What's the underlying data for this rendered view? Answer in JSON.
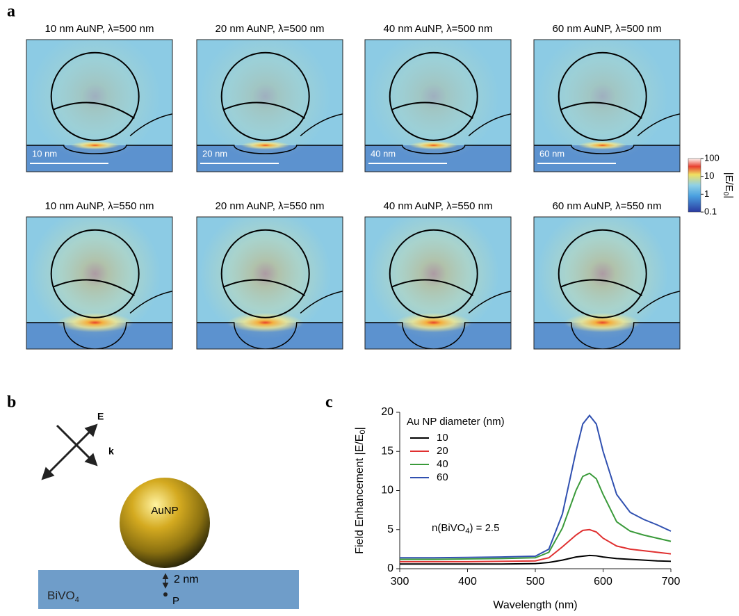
{
  "panel_a": {
    "label": "a",
    "maps": [
      {
        "title": "10 nm AuNP, λ=500 nm",
        "scale_bar": "10 nm"
      },
      {
        "title": "20 nm AuNP, λ=500 nm",
        "scale_bar": "20 nm"
      },
      {
        "title": "40 nm AuNP, λ=500 nm",
        "scale_bar": "40 nm"
      },
      {
        "title": "60 nm AuNP, λ=500 nm",
        "scale_bar": "60 nm"
      },
      {
        "title": "10 nm AuNP, λ=550 nm"
      },
      {
        "title": "20 nm AuNP, λ=550 nm"
      },
      {
        "title": "40 nm AuNP, λ=550 nm"
      },
      {
        "title": "60 nm AuNP, λ=550 nm"
      }
    ],
    "colorbar": {
      "ticks": [
        100,
        10,
        1,
        0.1
      ],
      "label": "|E/E",
      "label_sub": "0",
      "label_end": "|"
    }
  },
  "panel_b": {
    "label": "b",
    "e_field": "E",
    "k_vector": "k",
    "particle": "AuNP",
    "substrate": "BiVO",
    "substrate_sub": "4",
    "gap": "2 nm",
    "point": "P"
  },
  "panel_c_label": "c",
  "chart_data": {
    "type": "line",
    "x_label": "Wavelength (nm)",
    "y_label": "Field Enhancement |E/E",
    "y_label_sub": "0",
    "y_label_end": "|",
    "legend_title": "Au NP diameter (nm)",
    "annotation": "n(BiVO",
    "annotation_sub": "4",
    "annotation_end": ") = 2.5",
    "x": [
      300,
      350,
      400,
      450,
      500,
      520,
      540,
      560,
      570,
      580,
      590,
      600,
      620,
      640,
      660,
      680,
      700
    ],
    "series": [
      {
        "name": "10",
        "color": "#000000",
        "values": [
          0.6,
          0.6,
          0.6,
          0.6,
          0.65,
          0.8,
          1.1,
          1.5,
          1.6,
          1.7,
          1.65,
          1.5,
          1.3,
          1.2,
          1.1,
          1.0,
          0.95
        ]
      },
      {
        "name": "20",
        "color": "#e03030",
        "values": [
          0.9,
          0.9,
          0.9,
          0.95,
          1.0,
          1.4,
          2.8,
          4.3,
          4.9,
          5.0,
          4.7,
          3.9,
          2.9,
          2.5,
          2.3,
          2.1,
          1.9
        ]
      },
      {
        "name": "40",
        "color": "#3a9a3a",
        "values": [
          1.2,
          1.2,
          1.25,
          1.3,
          1.4,
          2.1,
          5.2,
          10,
          11.8,
          12.2,
          11.5,
          9.5,
          6,
          4.8,
          4.3,
          3.9,
          3.5
        ]
      },
      {
        "name": "60",
        "color": "#3050b0",
        "values": [
          1.4,
          1.4,
          1.45,
          1.5,
          1.6,
          2.5,
          7,
          15,
          18.5,
          19.6,
          18.5,
          15,
          9.5,
          7.2,
          6.3,
          5.6,
          4.8
        ]
      }
    ],
    "xlim": [
      300,
      700
    ],
    "ylim": [
      0,
      20
    ],
    "xticks": [
      300,
      400,
      500,
      600,
      700
    ],
    "yticks": [
      0,
      5,
      10,
      15,
      20
    ]
  }
}
